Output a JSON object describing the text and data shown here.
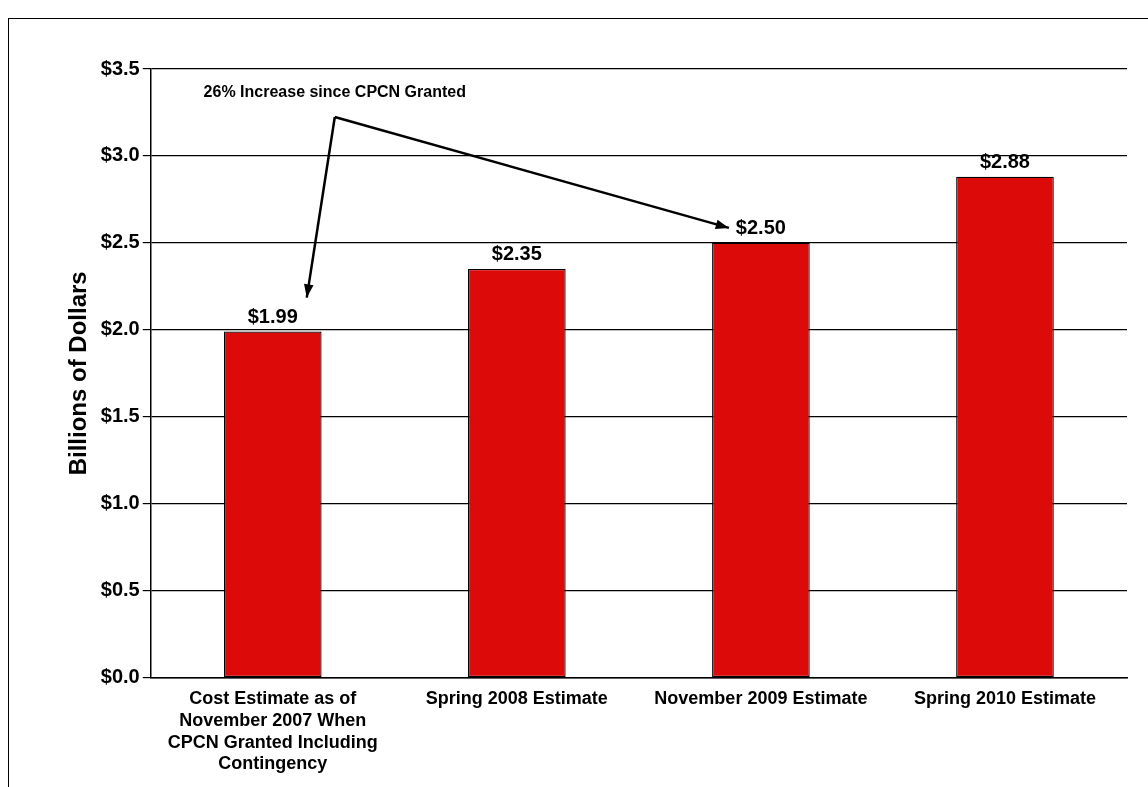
{
  "chart_data": {
    "type": "bar",
    "ylabel": "Billions of Dollars",
    "categories": [
      "Cost Estimate as of November 2007 When CPCN Granted Including Contingency",
      "Spring 2008 Estimate",
      "November 2009 Estimate",
      "Spring 2010 Estimate"
    ],
    "values": [
      1.99,
      2.35,
      2.5,
      2.88
    ],
    "value_labels": [
      "$1.99",
      "$2.35",
      "$2.50",
      "$2.88"
    ],
    "color": "#dd0a0a",
    "ylim": [
      0,
      3.5
    ],
    "yticks": [
      {
        "value": 0,
        "label": "$0.0"
      },
      {
        "value": 0.5,
        "label": "$0.5"
      },
      {
        "value": 1,
        "label": "$1.0"
      },
      {
        "value": 1.5,
        "label": "$1.5"
      },
      {
        "value": 2,
        "label": "$2.0"
      },
      {
        "value": 2.5,
        "label": "$2.5"
      },
      {
        "value": 3,
        "label": "$3.0"
      },
      {
        "value": 3.5,
        "label": "$3.5"
      }
    ],
    "grid": "y",
    "annotations": [
      "26% Increase since CPCN Granted"
    ]
  }
}
